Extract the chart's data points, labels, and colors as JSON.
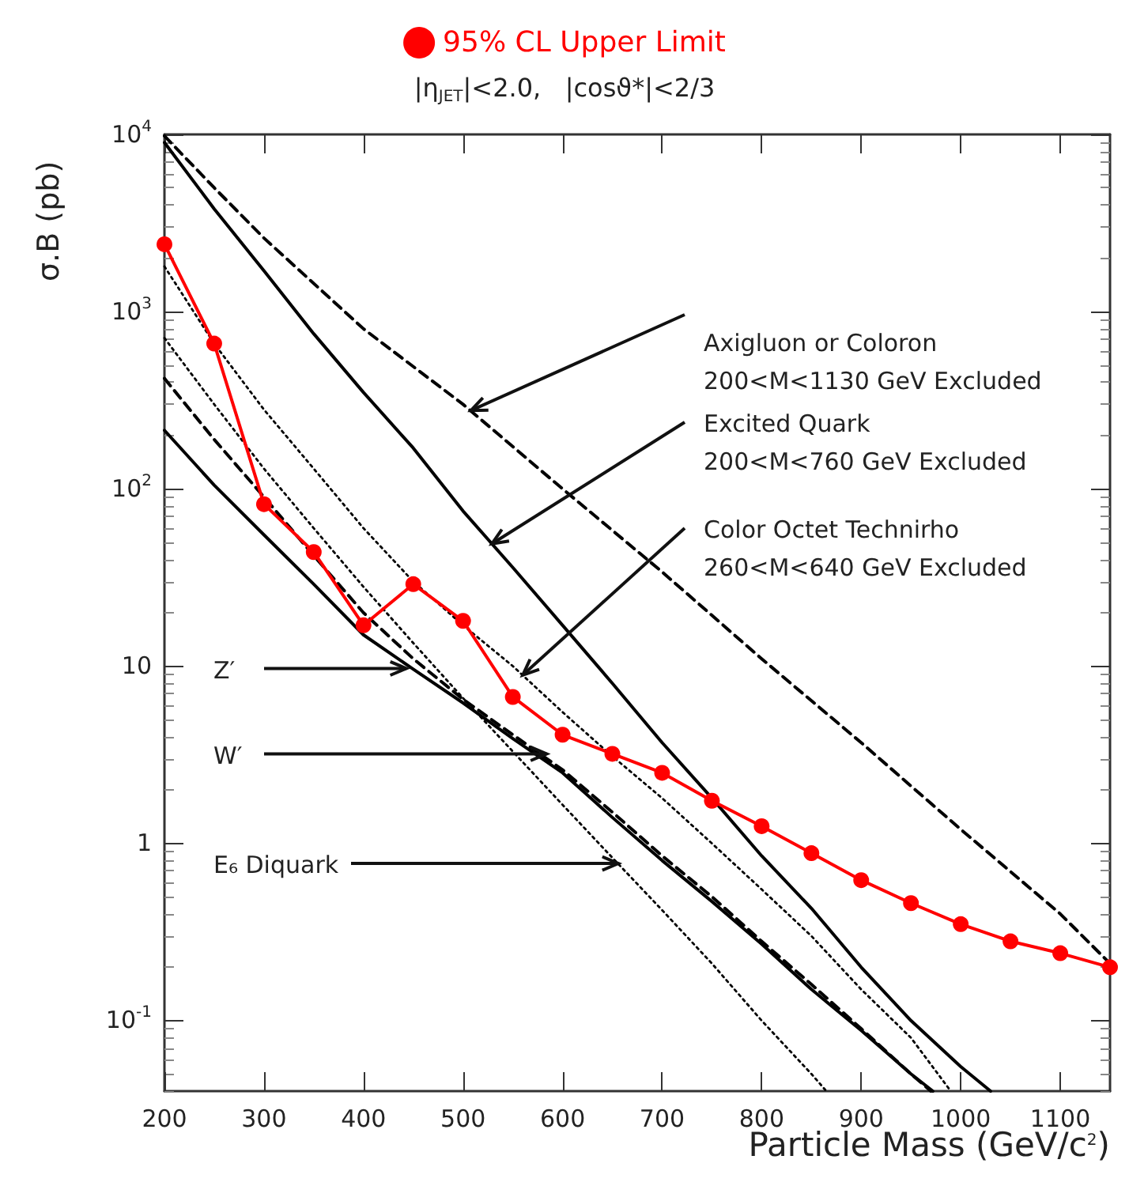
{
  "chart_data": {
    "type": "line",
    "subtitle": "|η$_{JET}$|<2.0,   |cosϑ*|<2/3",
    "xlabel": "Particle Mass (GeV/c$^{2}$)",
    "ylabel": "σ.B (pb)",
    "log": "y",
    "grid": false,
    "legend": "top",
    "xlim": [
      200,
      1150
    ],
    "xticks": [
      200,
      300,
      400,
      500,
      600,
      700,
      800,
      900,
      1000,
      1100
    ],
    "ylim": [
      0.04,
      10000
    ],
    "yticks": [
      {
        "value": 0.1,
        "label": "10$^{-1}$"
      },
      1,
      10,
      {
        "value": 100,
        "label": "10$^{2}$"
      },
      {
        "value": 1000,
        "label": "10$^{3}$"
      },
      {
        "value": 10000,
        "label": "10$^{4}$"
      }
    ],
    "series": [
      {
        "color": "#000000",
        "marker": "none",
        "line_style": "dashed",
        "x": [
          200,
          250,
          300,
          400,
          500,
          600,
          700,
          800,
          900,
          1000,
          1100,
          1150
        ],
        "values": [
          9800,
          5000,
          2600,
          800,
          300,
          100,
          34,
          11,
          3.7,
          1.2,
          0.4,
          0.21
        ]
      },
      {
        "color": "#000000",
        "marker": "none",
        "line_style": "solid",
        "x": [
          200,
          250,
          300,
          350,
          400,
          450,
          500,
          550,
          600,
          650,
          700,
          750,
          800,
          850,
          900,
          950,
          1000,
          1030
        ],
        "values": [
          9000,
          3800,
          1700,
          750,
          350,
          170,
          75,
          36,
          17,
          8,
          3.7,
          1.8,
          0.85,
          0.43,
          0.2,
          0.1,
          0.055,
          0.04
        ]
      },
      {
        "color": "#000000",
        "marker": "none",
        "line_style": "dotted",
        "x": [
          200,
          250,
          300,
          350,
          400,
          450,
          500,
          550,
          600,
          650,
          700,
          750,
          800,
          850,
          900,
          950,
          990
        ],
        "values": [
          1800,
          660,
          280,
          130,
          60,
          30,
          17,
          10,
          5.5,
          3.1,
          1.8,
          1.0,
          0.55,
          0.3,
          0.15,
          0.08,
          0.04
        ]
      },
      {
        "color": "#000000",
        "marker": "none",
        "line_style": "dashed",
        "x": [
          200,
          250,
          300,
          350,
          400,
          450,
          500,
          550,
          600,
          650,
          700,
          750,
          800,
          850,
          900,
          950,
          970
        ],
        "values": [
          420,
          190,
          90,
          42,
          20,
          11,
          6.5,
          4.1,
          2.6,
          1.5,
          0.85,
          0.5,
          0.28,
          0.16,
          0.09,
          0.05,
          0.04
        ]
      },
      {
        "color": "#000000",
        "marker": "none",
        "line_style": "solid",
        "x": [
          200,
          250,
          300,
          350,
          400,
          450,
          500,
          550,
          600,
          650,
          700,
          750,
          800,
          850,
          900,
          950,
          972
        ],
        "values": [
          214,
          105,
          55,
          29,
          15,
          9.6,
          6.2,
          3.9,
          2.5,
          1.4,
          0.8,
          0.47,
          0.27,
          0.15,
          0.088,
          0.05,
          0.04
        ]
      },
      {
        "color": "#000000",
        "marker": "none",
        "line_style": "dotted",
        "x": [
          200,
          250,
          300,
          350,
          400,
          450,
          500,
          550,
          600,
          650,
          700,
          750,
          800,
          850,
          865
        ],
        "values": [
          710,
          300,
          130,
          60,
          28,
          13.5,
          6.6,
          3.3,
          1.65,
          0.83,
          0.42,
          0.21,
          0.1,
          0.05,
          0.04
        ]
      },
      {
        "name": "95% CL Upper Limit",
        "color": "#ff0000",
        "marker": "circle",
        "line_style": "solid",
        "x": [
          200,
          250,
          300,
          350,
          400,
          450,
          500,
          550,
          600,
          650,
          700,
          750,
          800,
          850,
          900,
          950,
          1000,
          1050,
          1100,
          1150
        ],
        "values": [
          2400,
          660,
          82,
          44,
          17,
          29,
          18,
          6.7,
          4.1,
          3.2,
          2.5,
          1.74,
          1.25,
          0.88,
          0.62,
          0.46,
          0.35,
          0.28,
          0.24,
          0.2
        ]
      }
    ],
    "annotations": [
      {
        "text": "Axigluon or Coloron\n200<M<1130 GeV Excluded",
        "x": 508,
        "y": 277
      },
      {
        "text": "Excited Quark\n200<M<760 GeV Excluded",
        "x": 529,
        "y": 49
      },
      {
        "text": "Color Octet Technirho\n260<M<640 GeV Excluded",
        "x": 560,
        "y": 8.9
      },
      {
        "text": "Z′",
        "x": 443,
        "y": 9.7
      },
      {
        "text": "W′",
        "x": 584,
        "y": 3.2
      },
      {
        "text": "E₆ Diquark",
        "x": 656,
        "y": 0.77
      }
    ]
  }
}
